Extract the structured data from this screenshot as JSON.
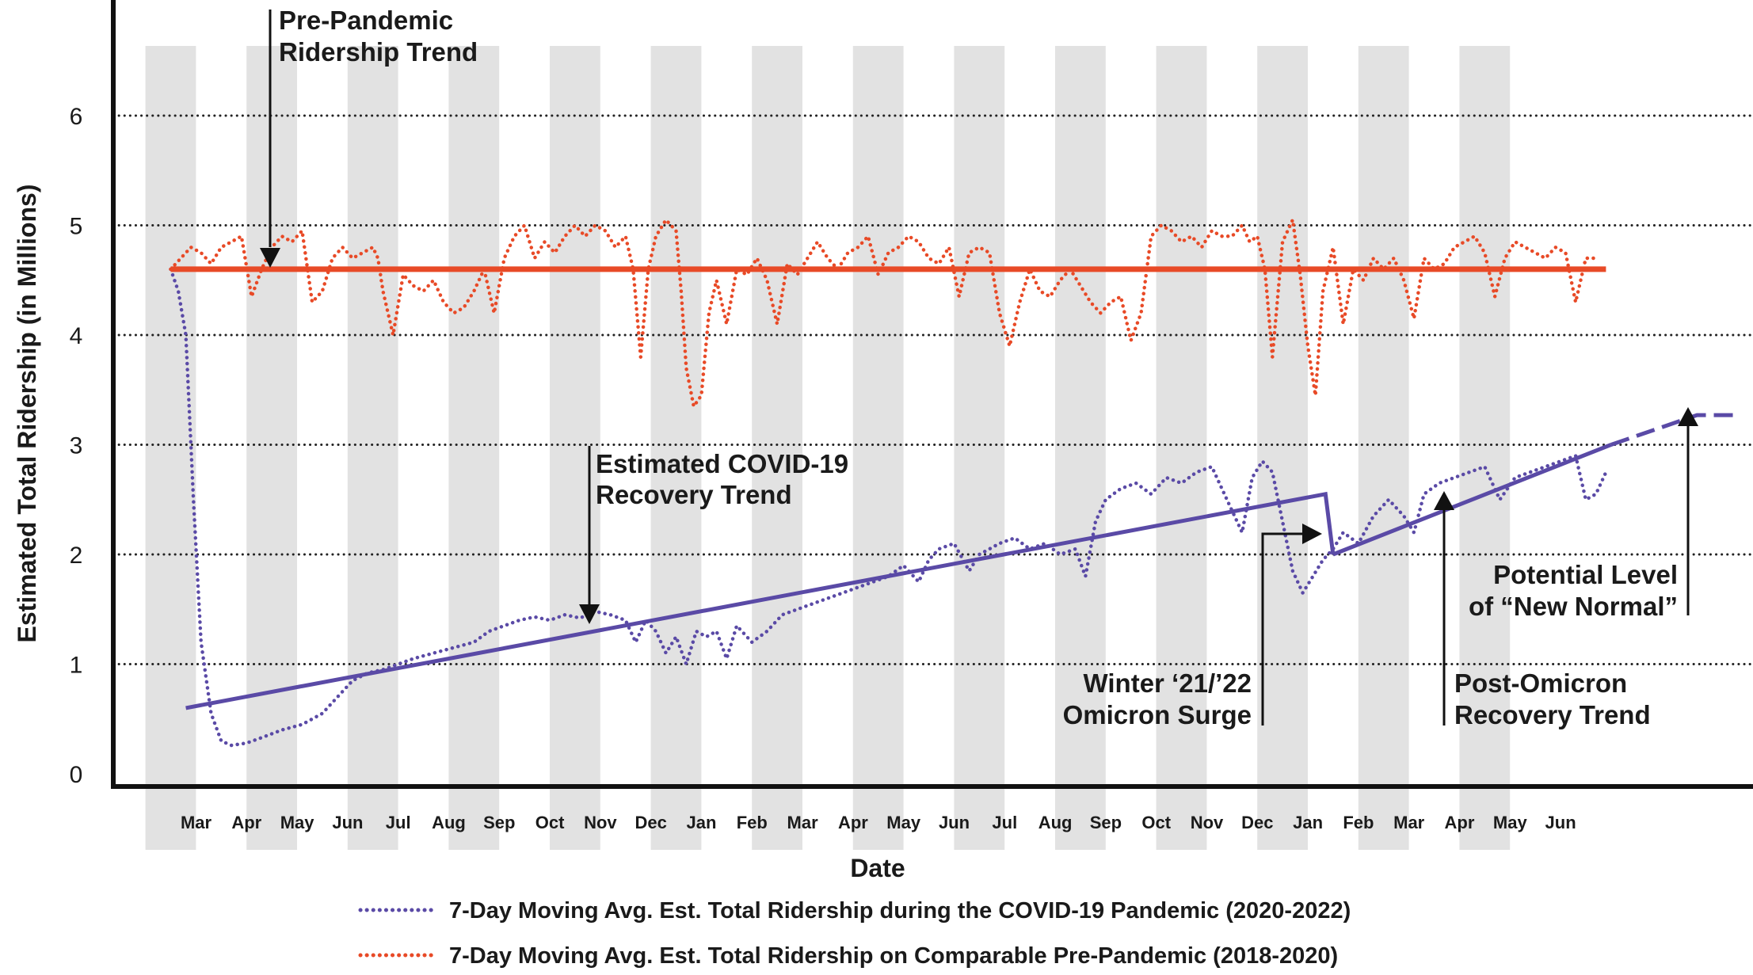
{
  "chart_data": {
    "type": "line",
    "xlabel": "Date",
    "ylabel": "Estimated Total Ridership (in Millions)",
    "ylim": [
      0,
      7
    ],
    "yticks": [
      "0",
      "1",
      "2",
      "3",
      "4",
      "5",
      "6"
    ],
    "y_gridlines": [
      1,
      2,
      3,
      4,
      5,
      6
    ],
    "grid": "dotted horizontal",
    "shaded_months": "alternating months shaded gray",
    "x_tick_labels": [
      "Mar",
      "Apr",
      "May",
      "Jun",
      "Jul",
      "Aug",
      "Sep",
      "Oct",
      "Nov",
      "Dec",
      "Jan",
      "Feb",
      "Mar",
      "Apr",
      "May",
      "Jun",
      "Jul",
      "Aug",
      "Sep",
      "Oct",
      "Nov",
      "Dec",
      "Jan",
      "Feb",
      "Mar",
      "Apr",
      "May",
      "Jun"
    ],
    "legend_position": "bottom",
    "colors": {
      "covid": "#5a4aa6",
      "prepandemic": "#e84a27",
      "shade": "#e2e2e2",
      "axis": "#111111"
    },
    "series": [
      {
        "name": "7-Day Moving Avg. Est. Total Ridership during the COVID-19 Pandemic (2020-2022)",
        "style": "dotted",
        "color": "#5a4aa6",
        "x_month_index": [
          0.0,
          0.15,
          0.3,
          0.45,
          0.6,
          0.8,
          1.0,
          1.2,
          1.5,
          1.8,
          2.2,
          2.6,
          3.0,
          3.3,
          3.6,
          3.9,
          4.2,
          4.5,
          4.8,
          5.2,
          5.6,
          6.0,
          6.3,
          6.6,
          6.9,
          7.2,
          7.5,
          7.8,
          8.1,
          8.4,
          8.7,
          9.0,
          9.2,
          9.4,
          9.6,
          9.8,
          10.0,
          10.2,
          10.4,
          10.6,
          10.8,
          11.0,
          11.2,
          11.5,
          11.8,
          12.1,
          12.4,
          12.7,
          13.0,
          13.3,
          13.6,
          13.9,
          14.2,
          14.5,
          14.8,
          15.0,
          15.2,
          15.5,
          15.8,
          16.0,
          16.2,
          16.4,
          16.7,
          17.0,
          17.3,
          17.6,
          17.9,
          18.1,
          18.3,
          18.5,
          18.8,
          19.1,
          19.4,
          19.7,
          20.0,
          20.3,
          20.6,
          20.9,
          21.2,
          21.4,
          21.6,
          21.8,
          22.0,
          22.2,
          22.4,
          22.6,
          22.8,
          23.0,
          23.2,
          23.5,
          23.8,
          24.1,
          24.4,
          24.6,
          24.8,
          25.1,
          25.4,
          25.7,
          26.0,
          26.3,
          26.6,
          26.9,
          27.2,
          27.5,
          27.8,
          28.0,
          28.2,
          28.4
        ],
        "values": [
          4.6,
          4.4,
          4.0,
          2.5,
          1.2,
          0.55,
          0.3,
          0.26,
          0.28,
          0.33,
          0.4,
          0.45,
          0.55,
          0.7,
          0.85,
          0.92,
          0.95,
          1.0,
          1.05,
          1.1,
          1.15,
          1.2,
          1.3,
          1.35,
          1.4,
          1.43,
          1.4,
          1.45,
          1.42,
          1.48,
          1.45,
          1.4,
          1.2,
          1.4,
          1.3,
          1.1,
          1.25,
          1.0,
          1.3,
          1.25,
          1.3,
          1.05,
          1.35,
          1.2,
          1.3,
          1.45,
          1.5,
          1.55,
          1.6,
          1.65,
          1.7,
          1.75,
          1.8,
          1.9,
          1.75,
          1.95,
          2.05,
          2.1,
          1.85,
          2.0,
          2.05,
          2.1,
          2.15,
          2.05,
          2.1,
          2.0,
          2.05,
          1.8,
          2.3,
          2.5,
          2.6,
          2.65,
          2.55,
          2.7,
          2.65,
          2.75,
          2.8,
          2.5,
          2.2,
          2.7,
          2.85,
          2.75,
          2.3,
          1.85,
          1.65,
          1.8,
          1.95,
          2.05,
          2.2,
          2.1,
          2.35,
          2.5,
          2.35,
          2.2,
          2.55,
          2.65,
          2.7,
          2.75,
          2.8,
          2.5,
          2.7,
          2.75,
          2.8,
          2.85,
          2.9,
          2.5,
          2.55,
          2.75
        ]
      },
      {
        "name": "7-Day Moving Avg. Est. Total Ridership on Comparable Pre-Pandemic (2018-2020)",
        "style": "dotted",
        "color": "#e84a27",
        "x_month_index": [
          0.0,
          0.2,
          0.4,
          0.6,
          0.8,
          1.0,
          1.2,
          1.4,
          1.6,
          1.8,
          2.0,
          2.2,
          2.4,
          2.6,
          2.8,
          3.0,
          3.2,
          3.4,
          3.6,
          3.8,
          4.0,
          4.1,
          4.2,
          4.4,
          4.6,
          4.8,
          5.0,
          5.2,
          5.4,
          5.6,
          5.8,
          6.0,
          6.2,
          6.4,
          6.6,
          6.8,
          7.0,
          7.2,
          7.4,
          7.6,
          7.8,
          8.0,
          8.2,
          8.4,
          8.6,
          8.8,
          9.0,
          9.15,
          9.3,
          9.45,
          9.6,
          9.8,
          10.0,
          10.1,
          10.2,
          10.35,
          10.5,
          10.65,
          10.8,
          11.0,
          11.2,
          11.4,
          11.6,
          11.8,
          12.0,
          12.2,
          12.4,
          12.6,
          12.8,
          13.0,
          13.2,
          13.4,
          13.6,
          13.8,
          14.0,
          14.2,
          14.4,
          14.6,
          14.8,
          15.0,
          15.2,
          15.4,
          15.6,
          15.8,
          16.0,
          16.2,
          16.4,
          16.6,
          16.8,
          17.0,
          17.2,
          17.4,
          17.6,
          17.8,
          18.0,
          18.2,
          18.4,
          18.6,
          18.8,
          19.0,
          19.2,
          19.4,
          19.6,
          19.8,
          20.0,
          20.2,
          20.4,
          20.6,
          20.8,
          21.0,
          21.2,
          21.35,
          21.5,
          21.65,
          21.8,
          22.0,
          22.2,
          22.35,
          22.5,
          22.65,
          22.8,
          23.0,
          23.2,
          23.4,
          23.6,
          23.8,
          24.0,
          24.2,
          24.4,
          24.6,
          24.8,
          25.0,
          25.2,
          25.4,
          25.6,
          25.8,
          26.0,
          26.2,
          26.4,
          26.6,
          26.8,
          27.0,
          27.2,
          27.4,
          27.6,
          27.8,
          28.0,
          28.2,
          28.4
        ],
        "values": [
          4.6,
          4.7,
          4.8,
          4.75,
          4.65,
          4.8,
          4.85,
          4.9,
          4.35,
          4.6,
          4.8,
          4.9,
          4.85,
          4.95,
          4.3,
          4.4,
          4.7,
          4.8,
          4.7,
          4.75,
          4.8,
          4.7,
          4.4,
          4.0,
          4.55,
          4.45,
          4.4,
          4.5,
          4.3,
          4.2,
          4.25,
          4.4,
          4.6,
          4.2,
          4.7,
          4.9,
          5.0,
          4.7,
          4.85,
          4.75,
          4.9,
          5.0,
          4.9,
          5.0,
          4.95,
          4.8,
          4.9,
          4.6,
          3.8,
          4.6,
          4.9,
          5.05,
          4.95,
          4.4,
          3.7,
          3.35,
          3.45,
          4.2,
          4.5,
          4.1,
          4.6,
          4.55,
          4.7,
          4.5,
          4.1,
          4.65,
          4.55,
          4.7,
          4.85,
          4.7,
          4.6,
          4.75,
          4.8,
          4.9,
          4.55,
          4.75,
          4.8,
          4.9,
          4.85,
          4.7,
          4.65,
          4.8,
          4.35,
          4.75,
          4.8,
          4.75,
          4.2,
          3.9,
          4.3,
          4.6,
          4.4,
          4.35,
          4.5,
          4.6,
          4.45,
          4.3,
          4.2,
          4.3,
          4.35,
          3.95,
          4.2,
          4.9,
          5.0,
          4.95,
          4.85,
          4.9,
          4.8,
          4.95,
          4.9,
          4.9,
          5.0,
          4.85,
          4.9,
          4.6,
          3.8,
          4.85,
          5.05,
          4.55,
          3.9,
          3.45,
          4.4,
          4.8,
          4.1,
          4.6,
          4.5,
          4.7,
          4.6,
          4.7,
          4.5,
          4.15,
          4.7,
          4.6,
          4.65,
          4.8,
          4.85,
          4.9,
          4.75,
          4.35,
          4.7,
          4.85,
          4.8,
          4.75,
          4.7,
          4.8,
          4.75,
          4.3,
          4.7,
          4.7
        ]
      }
    ],
    "trend_lines": [
      {
        "label": "Pre-Pandemic Ridership Trend",
        "color": "#e84a27",
        "style": "solid",
        "x_month_index": [
          0,
          28.4
        ],
        "values": [
          4.6,
          4.6
        ]
      },
      {
        "label": "Estimated COVID-19 Recovery Trend",
        "color": "#5a4aa6",
        "style": "solid",
        "x_month_index": [
          0.3,
          22.85,
          22.85,
          23.0
        ],
        "values": [
          0.6,
          2.55,
          2.55,
          2.0
        ]
      },
      {
        "label": "Post-Omicron Recovery Trend",
        "color": "#5a4aa6",
        "style": "solid",
        "x_month_index": [
          23.0,
          28.5
        ],
        "values": [
          2.0,
          3.0
        ]
      },
      {
        "label": "Potential Level of “New Normal”",
        "color": "#5a4aa6",
        "style": "dashed",
        "x_month_index": [
          28.5,
          30.2,
          31.0
        ],
        "values": [
          3.0,
          3.27,
          3.27
        ]
      }
    ]
  },
  "annotations": {
    "prepandemic_trend": [
      "Pre-Pandemic",
      "Ridership Trend"
    ],
    "covid_trend": [
      "Estimated COVID-19",
      "Recovery Trend"
    ],
    "omicron_surge": [
      "Winter ‘21/’22",
      "Omicron Surge"
    ],
    "post_omicron": [
      "Post-Omicron",
      "Recovery Trend"
    ],
    "new_normal": [
      "Potential Level",
      "of “New Normal”"
    ]
  },
  "legend": [
    {
      "label": "7-Day Moving Avg. Est. Total Ridership during the COVID-19 Pandemic (2020-2022)",
      "color": "#5a4aa6"
    },
    {
      "label": "7-Day Moving Avg. Est. Total Ridership on Comparable Pre-Pandemic (2018-2020)",
      "color": "#e84a27"
    }
  ]
}
